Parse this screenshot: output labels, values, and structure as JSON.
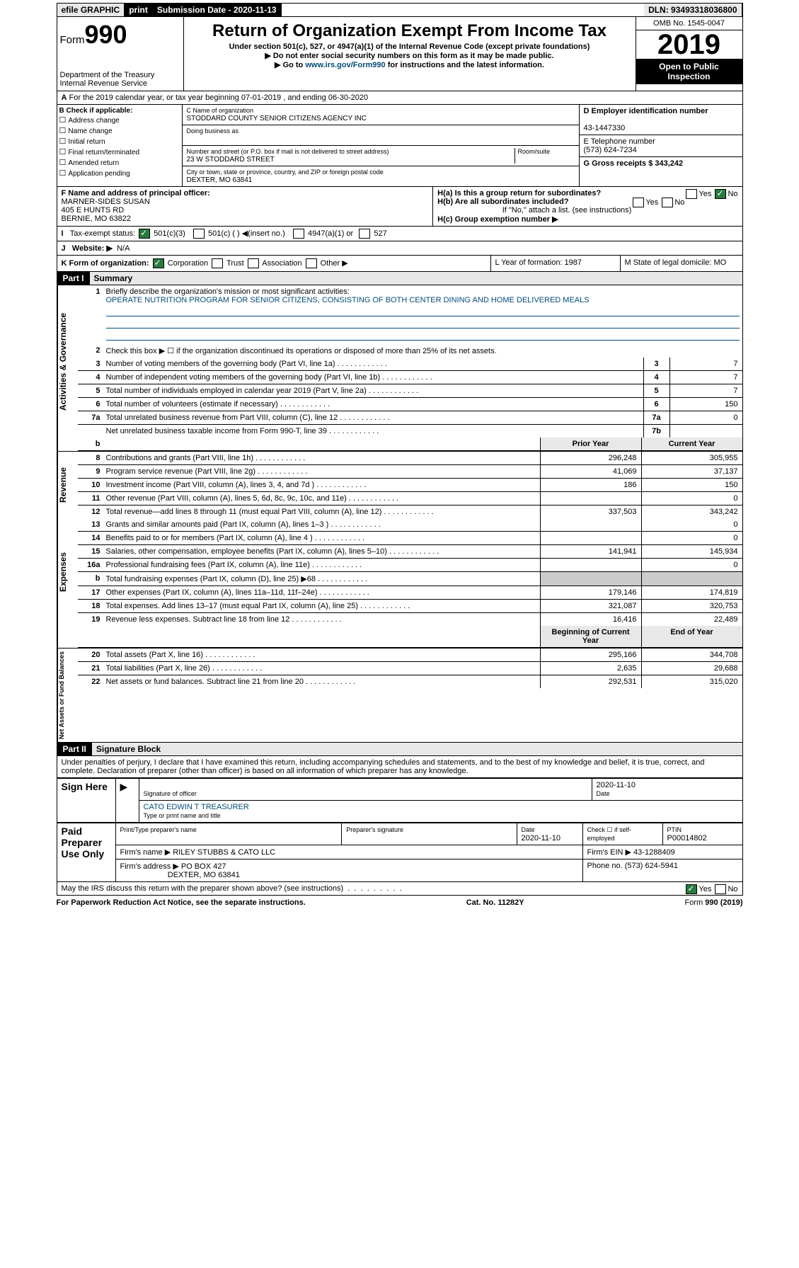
{
  "topbar": {
    "efile": "efile GRAPHIC",
    "print": "print",
    "sub": "Submission Date - 2020-11-13",
    "dln": "DLN: 93493318036800"
  },
  "header": {
    "form": "Form",
    "n990": "990",
    "dept": "Department of the Treasury",
    "irs": "Internal Revenue Service",
    "title": "Return of Organization Exempt From Income Tax",
    "sub": "Under section 501(c), 527, or 4947(a)(1) of the Internal Revenue Code (except private foundations)",
    "l1": "▶ Do not enter social security numbers on this form as it may be made public.",
    "l2a": "▶ Go to ",
    "l2b": "www.irs.gov/Form990",
    "l2c": " for instructions and the latest information.",
    "omb": "OMB No. 1545-0047",
    "year": "2019",
    "open": "Open to Public",
    "insp": "Inspection"
  },
  "a": {
    "txt": "For the 2019 calendar year, or tax year beginning 07-01-2019     , and ending 06-30-2020"
  },
  "b": {
    "hdr": "B Check if applicable:",
    "items": [
      "Address change",
      "Name change",
      "Initial return",
      "Final return/terminated",
      "Amended return",
      "Application pending"
    ],
    "cname": "C Name of organization",
    "org": "STODDARD COUNTY SENIOR CITIZENS AGENCY INC",
    "dba": "Doing business as",
    "addr_l": "Number and street (or P.O. box if mail is not delivered to street address)",
    "room": "Room/suite",
    "addr": "23 W STODDARD STREET",
    "city_l": "City or town, state or province, country, and ZIP or foreign postal code",
    "city": "DEXTER, MO  63841",
    "d": "D Employer identification number",
    "ein": "43-1447330",
    "e": "E Telephone number",
    "tel": "(573) 624-7234",
    "g": "G Gross receipts $ 343,242"
  },
  "f": {
    "lbl": "F   Name and address of principal officer:",
    "n": "MARNER-SIDES SUSAN",
    "a1": "405 E HUNTS RD",
    "a2": "BERNIE, MO  63822",
    "ha": "H(a)   Is this a group return for subordinates?",
    "hb": "H(b)   Are all subordinates included?",
    "hbn": "If \"No,\" attach a list. (see instructions)",
    "hc": "H(c)   Group exemption number ▶",
    "yes": "Yes",
    "no": "No"
  },
  "i": {
    "lbl": "Tax-exempt status:",
    "c1": "501(c)(3)",
    "c2": "501(c) (   ) ◀(insert no.)",
    "c3": "4947(a)(1) or",
    "c4": "527"
  },
  "j": {
    "lbl": "Website: ▶",
    "v": "N/A"
  },
  "k": {
    "lbl": "K Form of organization:",
    "c": "Corporation",
    "t": "Trust",
    "a": "Association",
    "o": "Other ▶",
    "l": "L Year of formation: 1987",
    "m": "M State of legal domicile: MO"
  },
  "p1": {
    "bar": "Part I",
    "t": "Summary",
    "side1": "Activities & Governance",
    "side2": "Revenue",
    "side3": "Expenses",
    "side4": "Net Assets or Fund Balances"
  },
  "q1": {
    "n": "1",
    "t": "Briefly describe the organization's mission or most significant activities:",
    "v": "OPERATE NUTRITION PROGRAM FOR SENIOR CITIZENS, CONSISTING OF BOTH CENTER DINING AND HOME DELIVERED MEALS"
  },
  "q2": {
    "n": "2",
    "t": "Check this box ▶ ☐  if the organization discontinued its operations or disposed of more than 25% of its net assets."
  },
  "rows_gov": [
    {
      "n": "3",
      "t": "Number of voting members of the governing body (Part VI, line 1a)",
      "k": "3",
      "v": "7"
    },
    {
      "n": "4",
      "t": "Number of independent voting members of the governing body (Part VI, line 1b)",
      "k": "4",
      "v": "7"
    },
    {
      "n": "5",
      "t": "Total number of individuals employed in calendar year 2019 (Part V, line 2a)",
      "k": "5",
      "v": "7"
    },
    {
      "n": "6",
      "t": "Total number of volunteers (estimate if necessary)",
      "k": "6",
      "v": "150"
    },
    {
      "n": "7a",
      "t": "Total unrelated business revenue from Part VIII, column (C), line 12",
      "k": "7a",
      "v": "0"
    },
    {
      "n": "",
      "t": "Net unrelated business taxable income from Form 990-T, line 39",
      "k": "7b",
      "v": ""
    }
  ],
  "hdr_py": "Prior Year",
  "hdr_cy": "Current Year",
  "rows_rev": [
    {
      "n": "8",
      "t": "Contributions and grants (Part VIII, line 1h)",
      "p": "296,248",
      "c": "305,955"
    },
    {
      "n": "9",
      "t": "Program service revenue (Part VIII, line 2g)",
      "p": "41,069",
      "c": "37,137"
    },
    {
      "n": "10",
      "t": "Investment income (Part VIII, column (A), lines 3, 4, and 7d )",
      "p": "186",
      "c": "150"
    },
    {
      "n": "11",
      "t": "Other revenue (Part VIII, column (A), lines 5, 6d, 8c, 9c, 10c, and 11e)",
      "p": "",
      "c": "0"
    },
    {
      "n": "12",
      "t": "Total revenue—add lines 8 through 11 (must equal Part VIII, column (A), line 12)",
      "p": "337,503",
      "c": "343,242"
    }
  ],
  "rows_exp": [
    {
      "n": "13",
      "t": "Grants and similar amounts paid (Part IX, column (A), lines 1–3 )",
      "p": "",
      "c": "0"
    },
    {
      "n": "14",
      "t": "Benefits paid to or for members (Part IX, column (A), line 4 )",
      "p": "",
      "c": "0"
    },
    {
      "n": "15",
      "t": "Salaries, other compensation, employee benefits (Part IX, column (A), lines 5–10)",
      "p": "141,941",
      "c": "145,934"
    },
    {
      "n": "16a",
      "t": "Professional fundraising fees (Part IX, column (A), line 11e)",
      "p": "",
      "c": "0"
    },
    {
      "n": "b",
      "t": "Total fundraising expenses (Part IX, column (D), line 25) ▶68",
      "p": "GRAY",
      "c": "GRAY"
    },
    {
      "n": "17",
      "t": "Other expenses (Part IX, column (A), lines 11a–11d, 11f–24e)",
      "p": "179,146",
      "c": "174,819"
    },
    {
      "n": "18",
      "t": "Total expenses. Add lines 13–17 (must equal Part IX, column (A), line 25)",
      "p": "321,087",
      "c": "320,753"
    },
    {
      "n": "19",
      "t": "Revenue less expenses. Subtract line 18 from line 12",
      "p": "16,416",
      "c": "22,489"
    }
  ],
  "hdr_bcy": "Beginning of Current Year",
  "hdr_eoy": "End of Year",
  "rows_net": [
    {
      "n": "20",
      "t": "Total assets (Part X, line 16)",
      "p": "295,166",
      "c": "344,708"
    },
    {
      "n": "21",
      "t": "Total liabilities (Part X, line 26)",
      "p": "2,635",
      "c": "29,688"
    },
    {
      "n": "22",
      "t": "Net assets or fund balances. Subtract line 21 from line 20",
      "p": "292,531",
      "c": "315,020"
    }
  ],
  "p2": {
    "bar": "Part II",
    "t": "Signature Block",
    "decl": "Under penalties of perjury, I declare that I have examined this return, including accompanying schedules and statements, and to the best of my knowledge and belief, it is true, correct, and complete. Declaration of preparer (other than officer) is based on all information of which preparer has any knowledge."
  },
  "sign": {
    "side": "Sign Here",
    "sigoff": "Signature of officer",
    "date": "Date",
    "d1": "2020-11-10",
    "name": "CATO EDWIN T TREASURER",
    "typ": "Type or print name and title"
  },
  "paid": {
    "side": "Paid Preparer Use Only",
    "h1": "Print/Type preparer's name",
    "h2": "Preparer's signature",
    "h3": "Date",
    "h4": "Check ☐ if self-employed",
    "h5": "PTIN",
    "d": "2020-11-10",
    "ptin": "P00014802",
    "fn": "Firm's name     ▶ RILEY STUBBS & CATO LLC",
    "fein": "Firm's EIN ▶  43-1288409",
    "fa": "Firm's address ▶ PO BOX 427",
    "fa2": "DEXTER, MO  63841",
    "ph": "Phone no. (573) 624-5941"
  },
  "discuss": "May the IRS discuss this return with the preparer shown above? (see instructions)",
  "footer": {
    "l": "For Paperwork Reduction Act Notice, see the separate instructions.",
    "c": "Cat. No. 11282Y",
    "r": "Form 990 (2019)"
  }
}
